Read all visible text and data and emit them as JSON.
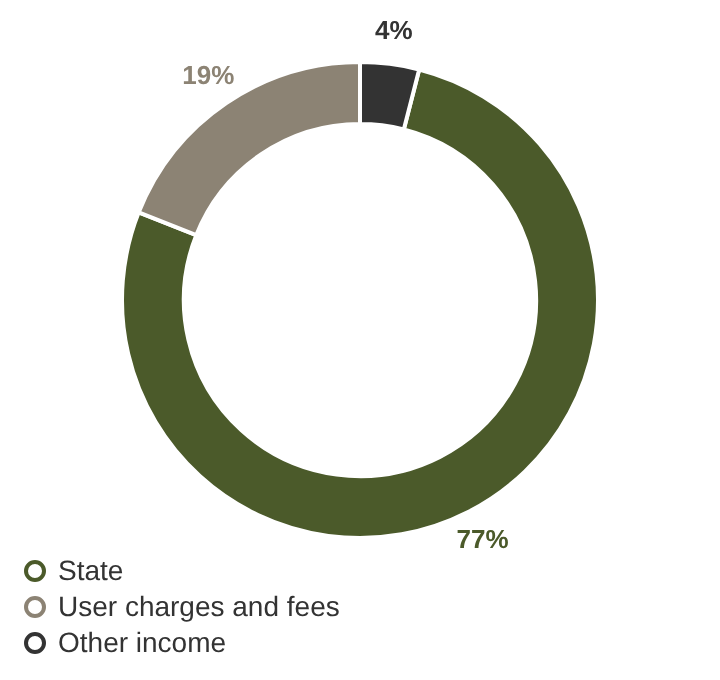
{
  "chart_data": {
    "type": "donut",
    "categories": [
      "State",
      "User charges and fees",
      "Other income"
    ],
    "values": [
      77,
      19,
      4
    ],
    "colors": [
      "#4b5a2a",
      "#8c8374",
      "#333333"
    ],
    "value_labels": [
      "77%",
      "19%",
      "4%"
    ],
    "legend": "bottom left"
  }
}
